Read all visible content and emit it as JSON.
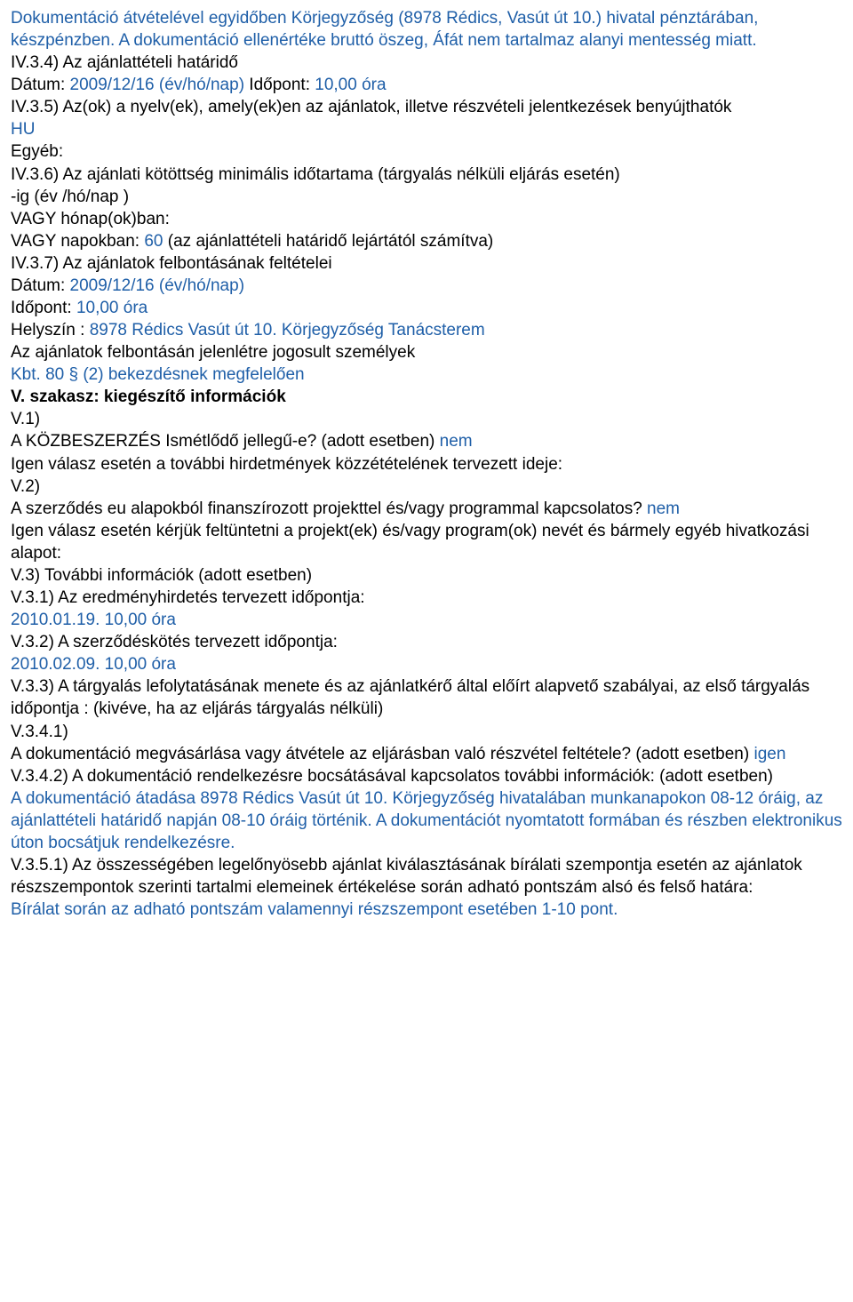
{
  "p1a": "Dokumentáció átvételével egyidőben Körjegyzőség (8978 Rédics, Vasút út 10.) hivatal pénztárában, készpénzben. A dokumentáció ellenértéke bruttó öszeg, Áfát nem tartalmaz alanyi mentesség miatt.",
  "p2a": "IV.3.4) Az ajánlattételi határidő",
  "p3a": "Dátum: ",
  "p3b": "2009/12/16 (év/hó/nap) ",
  "p3c": "Időpont: ",
  "p3d": "10,00 óra",
  "p4a": "IV.3.5) Az(ok) a nyelv(ek), amely(ek)en az ajánlatok, illetve részvételi jelentkezések benyújthatók",
  "p5a": "HU",
  "p6a": "Egyéb:",
  "p7a": "IV.3.6) Az ajánlati kötöttség minimális időtartama (tárgyalás nélküli eljárás esetén)",
  "p8a": "-ig (év /hó/nap )",
  "p9a": "VAGY hónap(ok)ban:",
  "p10a": "VAGY napokban: ",
  "p10b": "60 ",
  "p10c": "(az ajánlattételi határidő lejártától számítva)",
  "p11a": "IV.3.7) Az ajánlatok felbontásának feltételei",
  "p12a": "Dátum: ",
  "p12b": "2009/12/16 (év/hó/nap)",
  "p13a": "Időpont: ",
  "p13b": "10,00 óra",
  "p14a": "Helyszín : ",
  "p14b": "8978 Rédics Vasút út 10. Körjegyzőség Tanácsterem",
  "p15a": "Az ajánlatok felbontásán jelenlétre jogosult személyek",
  "p16a": "Kbt. 80 § (2) bekezdésnek megfelelően",
  "p17a": "V. szakasz: kiegészítő információk",
  "p18a": "V.1)",
  "p19a": "A KÖZBESZERZÉS Ismétlődő jellegű-e? (adott esetben) ",
  "p19b": "nem",
  "p20a": "Igen válasz esetén a további hirdetmények közzétételének tervezett ideje:",
  "p21a": "V.2)",
  "p22a": "A szerződés eu alapokból finanszírozott projekttel és/vagy programmal kapcsolatos? ",
  "p22b": "nem",
  "p23a": "Igen válasz esetén kérjük feltüntetni a projekt(ek) és/vagy program(ok) nevét és bármely egyéb hivatkozási alapot:",
  "p24a": "V.3) További információk (adott esetben)",
  "p25a": "V.3.1) Az eredményhirdetés tervezett időpontja:",
  "p26a": "2010.01.19. 10,00 óra",
  "p27a": "V.3.2) A szerződéskötés tervezett időpontja:",
  "p28a": "2010.02.09. 10,00 óra",
  "p29a": "V.3.3) A tárgyalás lefolytatásának menete és az ajánlatkérő által előírt alapvető szabályai, az első tárgyalás időpontja : (kivéve, ha az eljárás tárgyalás nélküli)",
  "p30a": "V.3.4.1)",
  "p31a": "A dokumentáció megvásárlása vagy átvétele az eljárásban való részvétel feltétele? (adott esetben) ",
  "p31b": "igen",
  "p32a": "V.3.4.2) A dokumentáció rendelkezésre bocsátásával kapcsolatos további információk: (adott esetben)",
  "p33a": "A dokumentáció átadása 8978 Rédics Vasút út 10. Körjegyzőség hivatalában munkanapokon 08-12 óráig, az ajánlattételi határidő napján 08-10 óráig történik. A dokumentációt nyomtatott formában és részben elektronikus úton bocsátjuk rendelkezésre.",
  "p34a": "V.3.5.1) Az összességében legelőnyösebb ajánlat kiválasztásának bírálati szempontja esetén az ajánlatok részszempontok szerinti tartalmi elemeinek értékelése során adható pontszám alsó és felső határa:",
  "p35a": "Bírálat során az adható pontszám valamennyi részszempont esetében 1-10 pont."
}
